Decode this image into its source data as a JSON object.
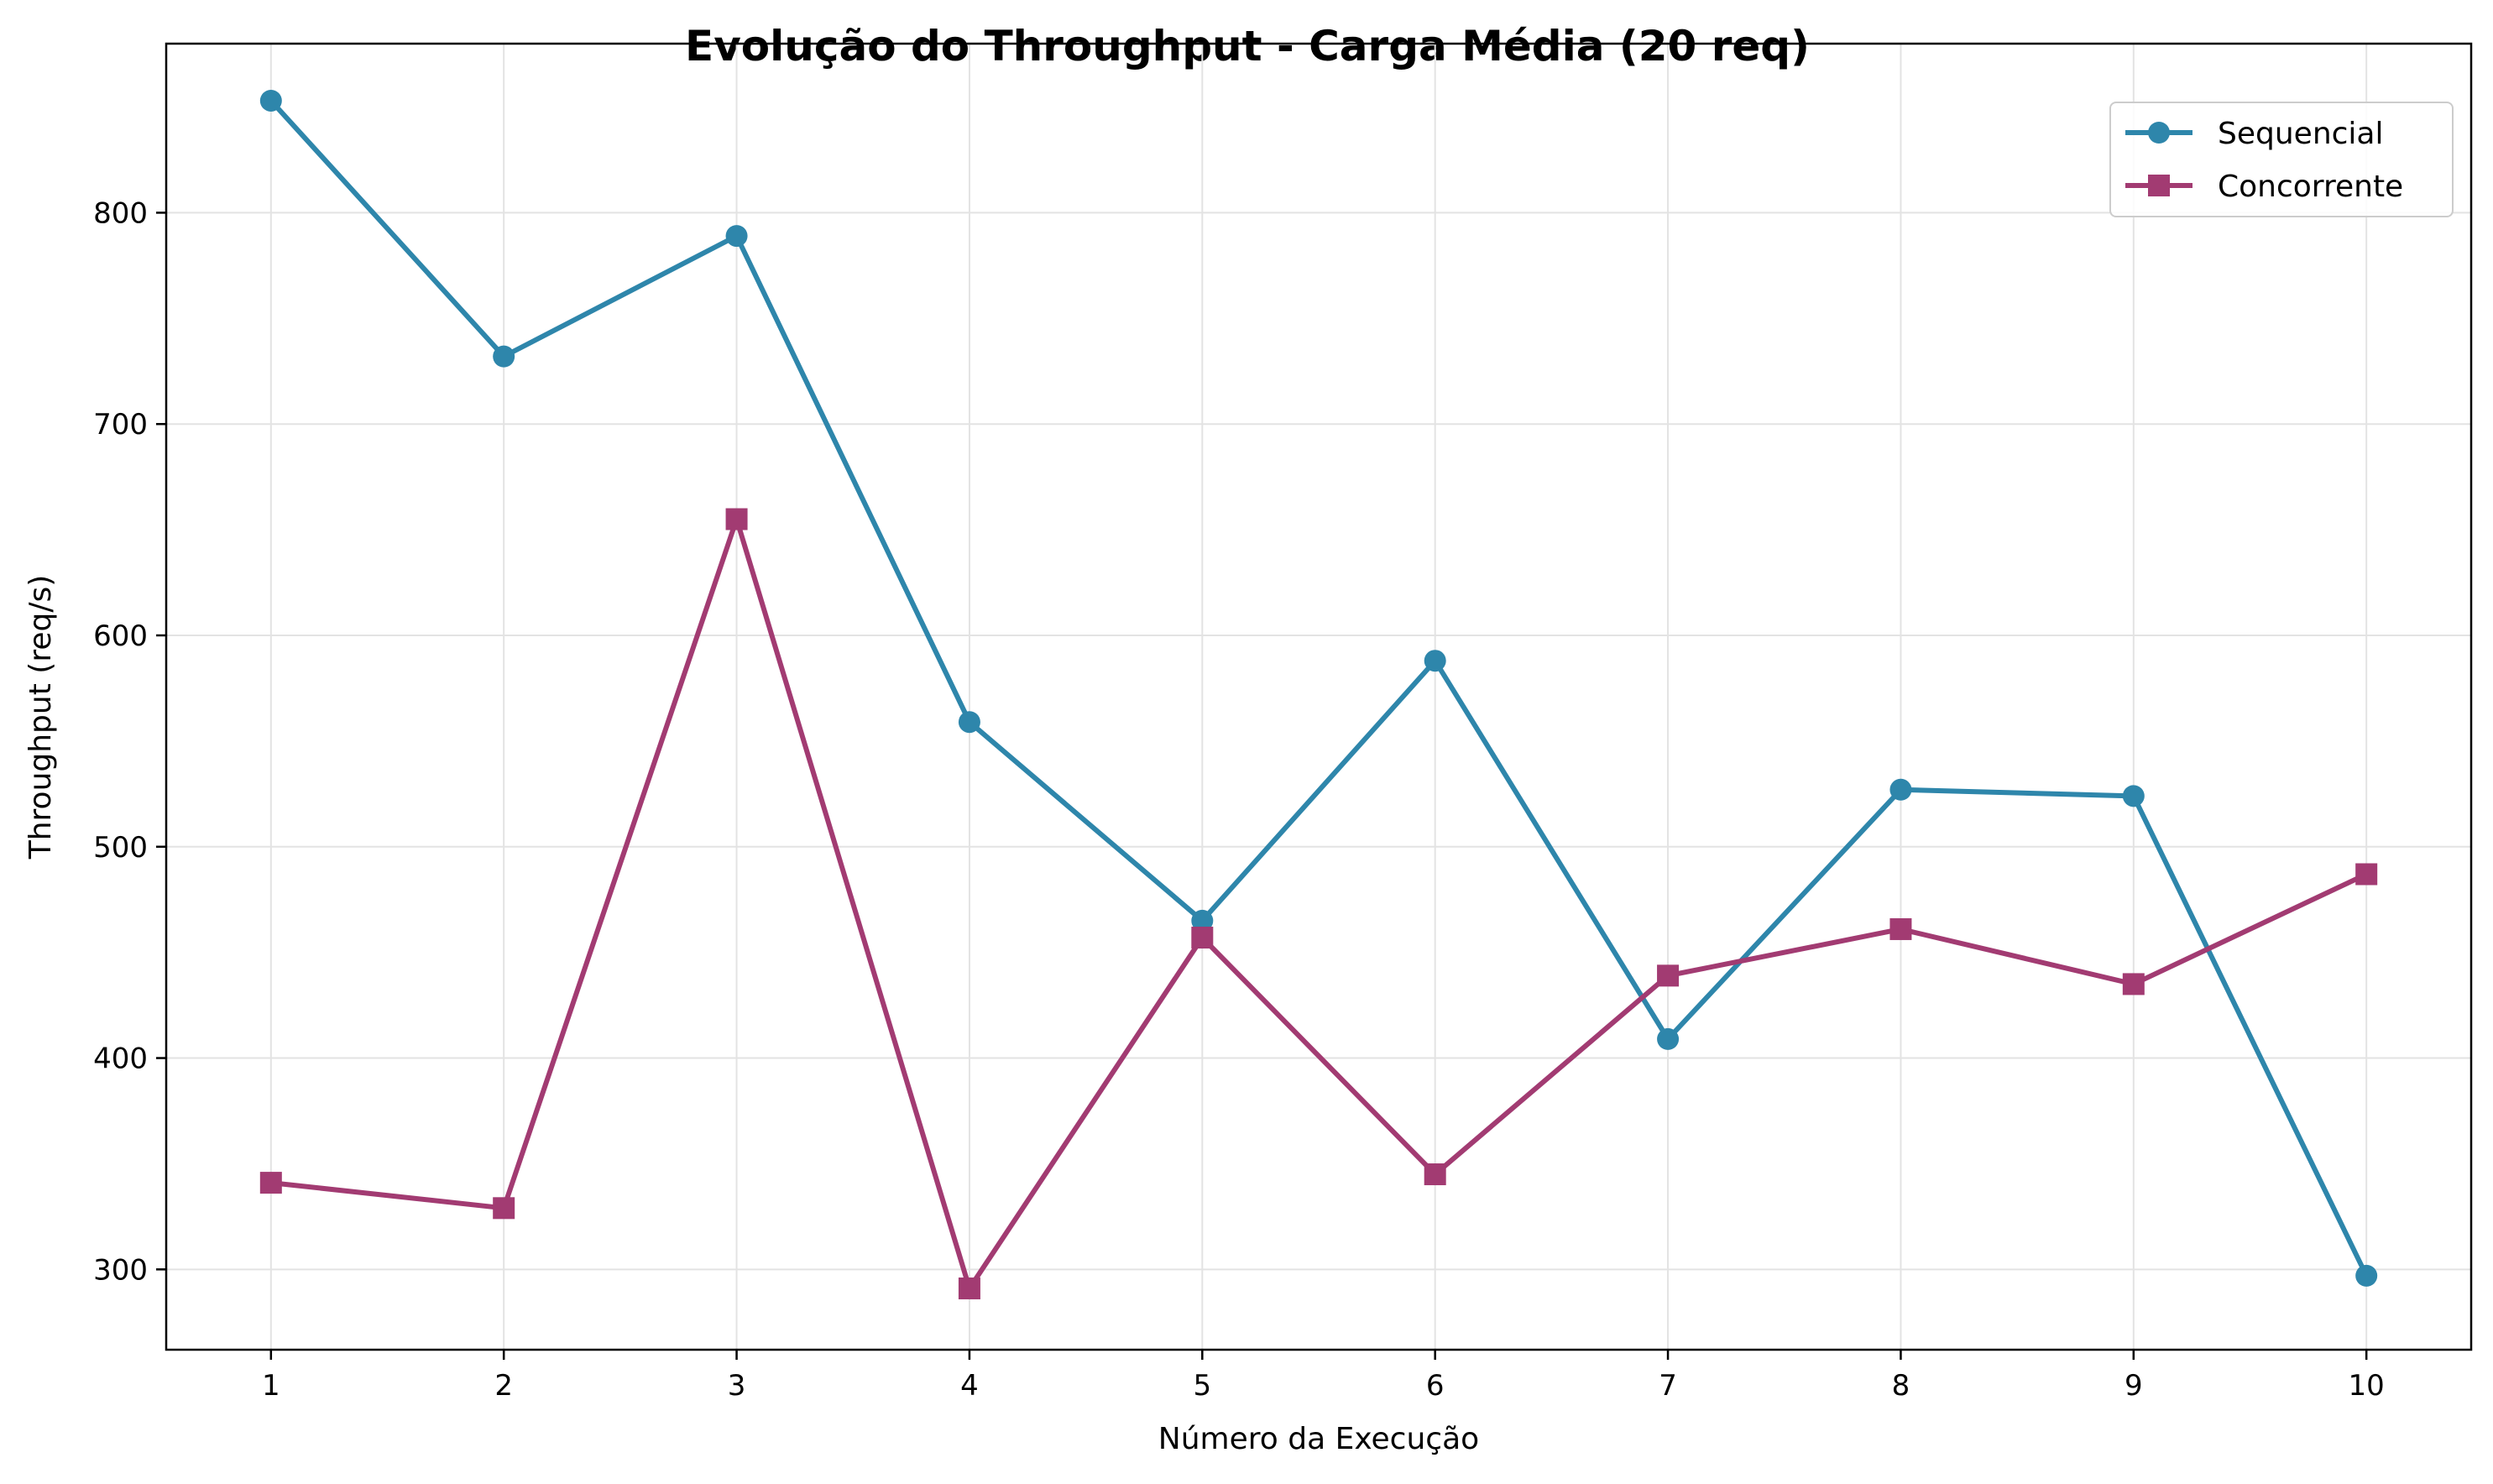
{
  "chart_data": {
    "type": "line",
    "title": "Evolução do Throughput - Carga Média (20 req)",
    "xlabel": "Número da Execução",
    "ylabel": "Throughput (req/s)",
    "x": [
      1,
      2,
      3,
      4,
      5,
      6,
      7,
      8,
      9,
      10
    ],
    "xlim": [
      0.55,
      10.45
    ],
    "ylim": [
      262,
      880
    ],
    "yticks": [
      300,
      400,
      500,
      600,
      700,
      800
    ],
    "grid": true,
    "legend_position": "top-right",
    "series": [
      {
        "name": "Sequencial",
        "color": "#2e86ab",
        "marker": "circle",
        "values": [
          853,
          732,
          789,
          559,
          465,
          588,
          409,
          527,
          524,
          297
        ]
      },
      {
        "name": "Concorrente",
        "color": "#a23b72",
        "marker": "square",
        "values": [
          341,
          329,
          655,
          291,
          457,
          345,
          439,
          461,
          435,
          487
        ]
      }
    ]
  }
}
